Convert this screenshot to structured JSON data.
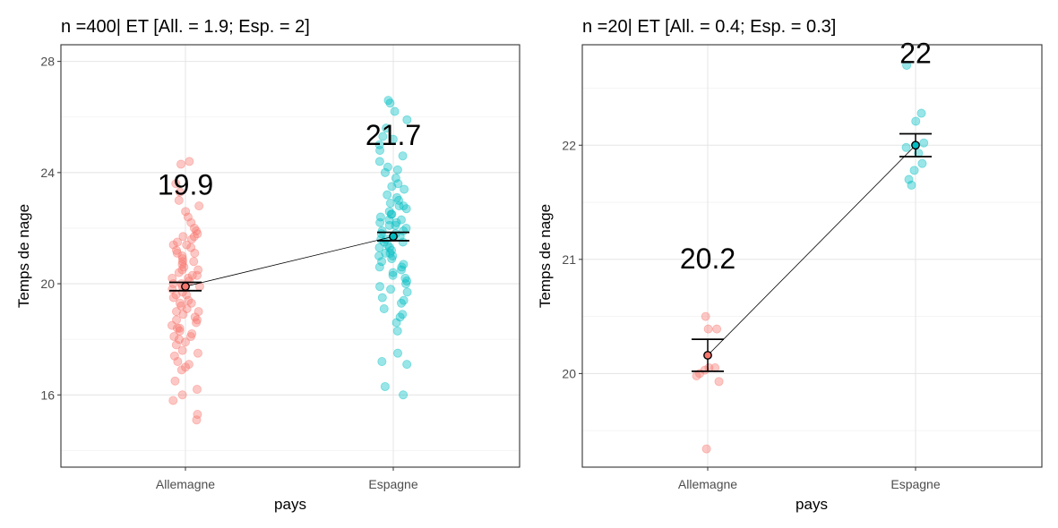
{
  "chart_data": [
    {
      "type": "scatter",
      "title": "n =400| ET [All. = 1.9; Esp. = 2]",
      "xlabel": "pays",
      "ylabel": "Temps de nage",
      "categories": [
        "Allemagne",
        "Espagne"
      ],
      "ylim": [
        13.4,
        28.6
      ],
      "yticks": [
        16,
        20,
        24,
        28
      ],
      "yticks_labels": [
        "16",
        "20",
        "24",
        "28"
      ],
      "means": [
        19.9,
        21.7
      ],
      "mean_labels": [
        "19.9",
        "21.7"
      ],
      "error_bars": [
        [
          19.75,
          20.05
        ],
        [
          21.55,
          21.85
        ]
      ],
      "colors": [
        "#F8766D",
        "#00BFC4"
      ],
      "grid": true,
      "points": [
        [
          15.1,
          15.3,
          15.8,
          16.0,
          16.2,
          16.5,
          16.9,
          17.0,
          17.1,
          17.2,
          17.4,
          17.5,
          17.6,
          17.8,
          17.9,
          18.0,
          18.1,
          18.2,
          18.3,
          18.4,
          18.5,
          18.6,
          18.7,
          18.8,
          18.9,
          19.0,
          19.1,
          19.2,
          19.3,
          19.4,
          19.5,
          19.6,
          19.7,
          19.8,
          19.9,
          20.0,
          20.1,
          20.2,
          20.3,
          20.4,
          20.5,
          20.6,
          20.7,
          20.8,
          20.9,
          21.0,
          21.1,
          21.2,
          21.3,
          21.4,
          21.5,
          21.6,
          21.7,
          21.8,
          21.9,
          22.0,
          22.2,
          22.4,
          22.6,
          22.8,
          23.0,
          23.3,
          23.6,
          24.3,
          24.4,
          18.1,
          18.4,
          18.7,
          19.0,
          19.3,
          19.6,
          19.9,
          20.2,
          20.5,
          20.8,
          21.1,
          21.4,
          21.7,
          20.0,
          20.3
        ],
        [
          16.0,
          16.3,
          17.1,
          17.2,
          17.5,
          18.3,
          18.6,
          18.9,
          19.1,
          19.3,
          19.5,
          19.7,
          19.9,
          20.1,
          20.3,
          20.5,
          20.6,
          20.8,
          20.9,
          21.0,
          21.1,
          21.2,
          21.3,
          21.4,
          21.5,
          21.6,
          21.7,
          21.8,
          21.9,
          22.0,
          22.1,
          22.2,
          22.3,
          22.4,
          22.5,
          22.6,
          22.7,
          22.8,
          22.9,
          23.0,
          23.2,
          23.4,
          23.6,
          23.8,
          24.0,
          24.2,
          24.4,
          24.6,
          24.8,
          25.0,
          25.3,
          25.6,
          25.9,
          26.2,
          26.5,
          26.6,
          20.4,
          20.7,
          21.0,
          21.3,
          21.6,
          21.9,
          22.2,
          22.5,
          22.8,
          23.1,
          19.8,
          20.2,
          21.5,
          22.1,
          23.5,
          24.1,
          18.8,
          19.4,
          25.2,
          20.0,
          21.8,
          22.3,
          21.1,
          20.6
        ]
      ]
    },
    {
      "type": "scatter",
      "title": "n =20| ET [All. = 0.4; Esp. = 0.3]",
      "xlabel": "pays",
      "ylabel": "Temps de nage",
      "categories": [
        "Allemagne",
        "Espagne"
      ],
      "ylim": [
        19.18,
        22.88
      ],
      "yticks": [
        20,
        21,
        22
      ],
      "yticks_labels": [
        "20",
        "21",
        "22"
      ],
      "means": [
        20.16,
        22.0
      ],
      "mean_labels": [
        "20.2",
        "22"
      ],
      "error_bars": [
        [
          20.02,
          20.3
        ],
        [
          21.9,
          22.1
        ]
      ],
      "colors": [
        "#F8766D",
        "#00BFC4"
      ],
      "grid": true,
      "points": [
        [
          20.5,
          20.39,
          20.39,
          20.05,
          20.05,
          20.03,
          19.98,
          20.0,
          19.93,
          19.34
        ],
        [
          22.7,
          22.28,
          22.21,
          22.02,
          21.98,
          21.93,
          21.84,
          21.78,
          21.7,
          21.65
        ]
      ]
    }
  ]
}
